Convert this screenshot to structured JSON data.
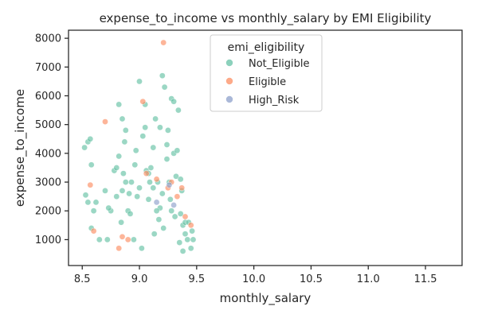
{
  "chart_data": {
    "type": "scatter",
    "title": "expense_to_income vs monthly_salary by EMI Eligibility",
    "xlabel": "monthly_salary",
    "ylabel": "expense_to_income",
    "xlim": [
      8.38,
      11.82
    ],
    "ylim": [
      100,
      8280
    ],
    "xticks": [
      "8.5",
      "9.0",
      "9.5",
      "10.0",
      "10.5",
      "11.0",
      "11.5"
    ],
    "yticks": [
      "1000",
      "2000",
      "3000",
      "4000",
      "5000",
      "6000",
      "7000",
      "8000"
    ],
    "grid": false,
    "legend": {
      "title": "emi_eligibility",
      "placement": "upper-center"
    },
    "series": [
      {
        "name": "Not_Eligible",
        "color": "#66c2a5",
        "points": [
          [
            8.52,
            4200
          ],
          [
            8.55,
            4400
          ],
          [
            8.57,
            4500
          ],
          [
            8.58,
            3600
          ],
          [
            8.53,
            2550
          ],
          [
            8.55,
            2300
          ],
          [
            8.6,
            2000
          ],
          [
            8.62,
            2300
          ],
          [
            8.58,
            1400
          ],
          [
            8.65,
            1000
          ],
          [
            8.7,
            2700
          ],
          [
            8.75,
            2000
          ],
          [
            8.73,
            2100
          ],
          [
            8.78,
            3400
          ],
          [
            8.8,
            3500
          ],
          [
            8.82,
            3900
          ],
          [
            8.85,
            2700
          ],
          [
            8.86,
            3300
          ],
          [
            8.88,
            3000
          ],
          [
            8.82,
            5700
          ],
          [
            8.85,
            5200
          ],
          [
            8.88,
            4800
          ],
          [
            8.9,
            2000
          ],
          [
            8.92,
            1900
          ],
          [
            8.72,
            1000
          ],
          [
            8.8,
            2500
          ],
          [
            8.95,
            1000
          ],
          [
            8.97,
            4100
          ],
          [
            9.0,
            6500
          ],
          [
            9.03,
            4600
          ],
          [
            9.05,
            5700
          ],
          [
            9.06,
            3400
          ],
          [
            9.08,
            3300
          ],
          [
            9.1,
            3500
          ],
          [
            9.12,
            4200
          ],
          [
            9.14,
            5200
          ],
          [
            9.16,
            3000
          ],
          [
            9.18,
            4900
          ],
          [
            9.2,
            2600
          ],
          [
            9.22,
            6300
          ],
          [
            9.24,
            3800
          ],
          [
            9.26,
            3000
          ],
          [
            9.28,
            5900
          ],
          [
            9.3,
            5800
          ],
          [
            9.32,
            3200
          ],
          [
            9.34,
            5500
          ],
          [
            9.36,
            3100
          ],
          [
            9.37,
            2700
          ],
          [
            9.38,
            1500
          ],
          [
            9.4,
            1600
          ],
          [
            9.3,
            4000
          ],
          [
            9.25,
            4800
          ],
          [
            9.18,
            2100
          ],
          [
            9.12,
            2800
          ],
          [
            9.08,
            2400
          ],
          [
            9.02,
            700
          ],
          [
            9.0,
            2800
          ],
          [
            8.98,
            2500
          ],
          [
            8.93,
            3000
          ],
          [
            9.15,
            2000
          ],
          [
            9.2,
            6700
          ],
          [
            9.33,
            4100
          ],
          [
            9.35,
            900
          ],
          [
            9.38,
            600
          ],
          [
            9.4,
            1200
          ],
          [
            9.42,
            1000
          ],
          [
            9.45,
            700
          ],
          [
            9.47,
            1000
          ],
          [
            9.43,
            1600
          ],
          [
            9.46,
            1300
          ],
          [
            9.24,
            4300
          ],
          [
            9.28,
            2000
          ],
          [
            9.31,
            1800
          ],
          [
            9.36,
            1900
          ],
          [
            8.96,
            3600
          ],
          [
            8.91,
            2600
          ],
          [
            8.84,
            1600
          ],
          [
            9.09,
            3000
          ],
          [
            9.13,
            1200
          ],
          [
            9.17,
            1700
          ],
          [
            9.21,
            1400
          ],
          [
            9.27,
            2400
          ],
          [
            9.05,
            4900
          ],
          [
            8.87,
            4400
          ]
        ]
      },
      {
        "name": "Eligible",
        "color": "#fc8d62",
        "points": [
          [
            8.57,
            2900
          ],
          [
            8.6,
            1300
          ],
          [
            8.7,
            5100
          ],
          [
            8.82,
            700
          ],
          [
            8.85,
            1100
          ],
          [
            8.9,
            1000
          ],
          [
            9.03,
            5800
          ],
          [
            9.15,
            3100
          ],
          [
            9.21,
            7850
          ],
          [
            9.25,
            2800
          ],
          [
            9.28,
            3000
          ],
          [
            9.37,
            2800
          ],
          [
            9.4,
            1800
          ],
          [
            9.06,
            3300
          ],
          [
            9.45,
            1500
          ],
          [
            9.33,
            2500
          ]
        ]
      },
      {
        "name": "High_Risk",
        "color": "#8da0cb",
        "points": [
          [
            9.15,
            2300
          ],
          [
            9.26,
            2900
          ],
          [
            9.3,
            2200
          ]
        ]
      }
    ]
  }
}
